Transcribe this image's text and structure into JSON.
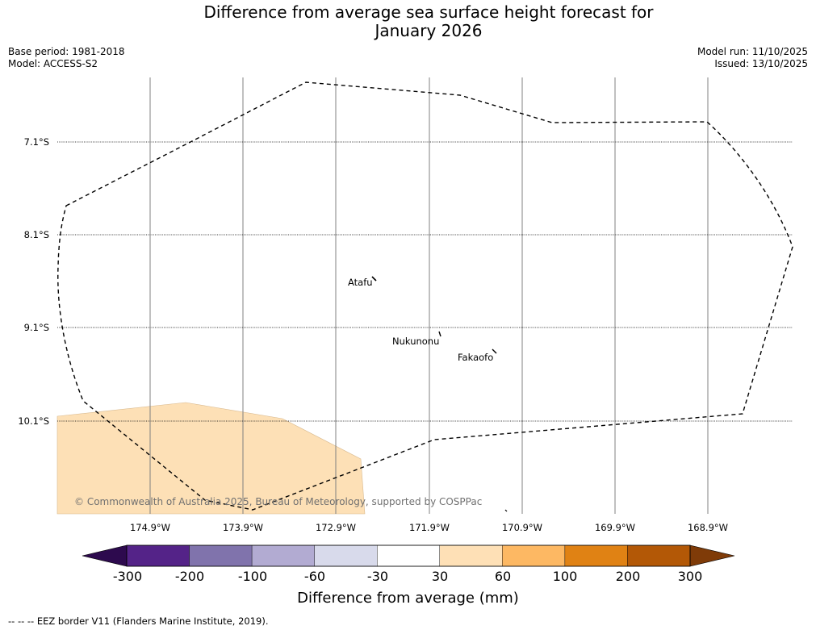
{
  "title": {
    "line1": "Difference from average sea surface height forecast for",
    "line2": "January 2026"
  },
  "meta": {
    "base_period": "Base period: 1981-2018",
    "model": "Model: ACCESS-S2",
    "model_run": "Model run: 11/10/2025",
    "issued": "Issued: 13/10/2025"
  },
  "map": {
    "lat_labels": [
      "7.1°S",
      "8.1°S",
      "9.1°S",
      "10.1°S"
    ],
    "lon_labels": [
      "174.9°W",
      "173.9°W",
      "172.9°W",
      "171.9°W",
      "170.9°W",
      "169.9°W",
      "168.9°W"
    ],
    "places": [
      "Atafu",
      "Nukunonu",
      "Fakaofo"
    ],
    "copyright": "© Commonwealth of Australia 2025, Bureau of Meteorology, supported by COSPPac",
    "anomaly_fill_color": "#fde0b6",
    "eez_border_color": "#000000"
  },
  "colorbar": {
    "title": "Difference from average (mm)",
    "ticks": [
      "-300",
      "-200",
      "-100",
      "-60",
      "-30",
      "30",
      "60",
      "100",
      "200",
      "300"
    ],
    "under_color": "#2d0a4e",
    "colors": [
      "#542388",
      "#8073ac",
      "#b2abd2",
      "#d8daeb",
      "#ffffff",
      "#fee0b6",
      "#fdb863",
      "#e08214",
      "#b35806"
    ],
    "over_color": "#7f3b08"
  },
  "footer": "--  --  -- EEZ border V11 (Flanders Marine Institute, 2019)."
}
